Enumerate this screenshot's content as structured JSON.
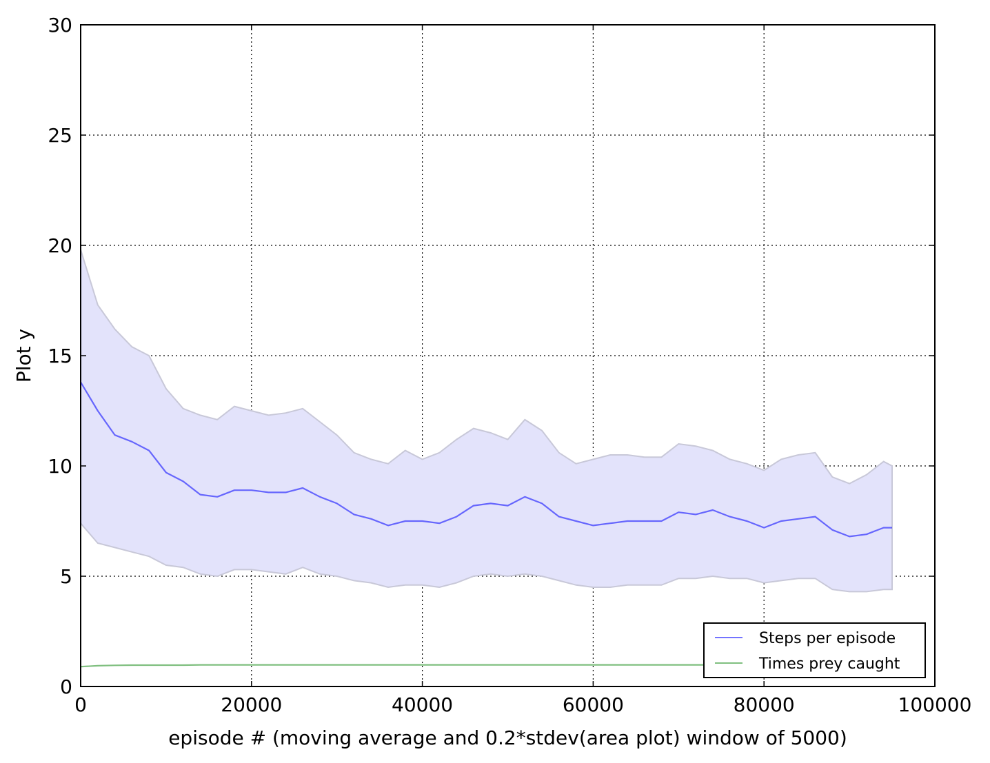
{
  "chart_data": {
    "type": "line",
    "title": "",
    "xlabel": "episode # (moving average and 0.2*stdev(area plot) window of 5000)",
    "ylabel": "Plot y",
    "xlim": [
      0,
      100000
    ],
    "ylim": [
      0,
      30
    ],
    "x_ticks": [
      0,
      20000,
      40000,
      60000,
      80000,
      100000
    ],
    "x_tick_labels": [
      "0",
      "20000",
      "40000",
      "60000",
      "80000",
      "100000"
    ],
    "y_ticks": [
      0,
      5,
      10,
      15,
      20,
      25,
      30
    ],
    "y_tick_labels": [
      "0",
      "5",
      "10",
      "15",
      "20",
      "25",
      "30"
    ],
    "grid": true,
    "legend_position": "bottom-right",
    "x": [
      0,
      2000,
      4000,
      6000,
      8000,
      10000,
      12000,
      14000,
      16000,
      18000,
      20000,
      22000,
      24000,
      26000,
      28000,
      30000,
      32000,
      34000,
      36000,
      38000,
      40000,
      42000,
      44000,
      46000,
      48000,
      50000,
      52000,
      54000,
      56000,
      58000,
      60000,
      62000,
      64000,
      66000,
      68000,
      70000,
      72000,
      74000,
      76000,
      78000,
      80000,
      82000,
      84000,
      86000,
      88000,
      90000,
      92000,
      94000,
      95000
    ],
    "series": [
      {
        "name": "Steps per episode",
        "color": "#0000ff",
        "opacity": 0.55,
        "values": [
          13.8,
          12.5,
          11.4,
          11.1,
          10.7,
          9.7,
          9.3,
          8.7,
          8.6,
          8.9,
          8.9,
          8.8,
          8.8,
          9.0,
          8.6,
          8.3,
          7.8,
          7.6,
          7.3,
          7.5,
          7.5,
          7.4,
          7.7,
          8.2,
          8.3,
          8.2,
          8.6,
          8.3,
          7.7,
          7.5,
          7.3,
          7.4,
          7.5,
          7.5,
          7.5,
          7.9,
          7.8,
          8.0,
          7.7,
          7.5,
          7.2,
          7.5,
          7.6,
          7.7,
          7.1,
          6.8,
          6.9,
          7.2,
          7.2
        ],
        "band_upper": [
          19.8,
          17.3,
          16.2,
          15.4,
          15.0,
          13.5,
          12.6,
          12.3,
          12.1,
          12.7,
          12.5,
          12.3,
          12.4,
          12.6,
          12.0,
          11.4,
          10.6,
          10.3,
          10.1,
          10.7,
          10.3,
          10.6,
          11.2,
          11.7,
          11.5,
          11.2,
          12.1,
          11.6,
          10.6,
          10.1,
          10.3,
          10.5,
          10.5,
          10.4,
          10.4,
          11.0,
          10.9,
          10.7,
          10.3,
          10.1,
          9.8,
          10.3,
          10.5,
          10.6,
          9.5,
          9.2,
          9.6,
          10.2,
          10.0
        ],
        "band_lower": [
          7.4,
          6.5,
          6.3,
          6.1,
          5.9,
          5.5,
          5.4,
          5.1,
          5.0,
          5.3,
          5.3,
          5.2,
          5.1,
          5.4,
          5.1,
          5.0,
          4.8,
          4.7,
          4.5,
          4.6,
          4.6,
          4.5,
          4.7,
          5.0,
          5.1,
          5.0,
          5.1,
          5.0,
          4.8,
          4.6,
          4.5,
          4.5,
          4.6,
          4.6,
          4.6,
          4.9,
          4.9,
          5.0,
          4.9,
          4.9,
          4.7,
          4.8,
          4.9,
          4.9,
          4.4,
          4.3,
          4.3,
          4.4,
          4.4
        ]
      },
      {
        "name": "Times prey caught",
        "color": "#008000",
        "opacity": 0.5,
        "values": [
          0.9,
          0.94,
          0.96,
          0.97,
          0.97,
          0.97,
          0.97,
          0.98,
          0.98,
          0.98,
          0.98,
          0.98,
          0.98,
          0.98,
          0.98,
          0.98,
          0.98,
          0.98,
          0.98,
          0.98,
          0.98,
          0.98,
          0.98,
          0.98,
          0.98,
          0.98,
          0.98,
          0.98,
          0.98,
          0.98,
          0.98,
          0.98,
          0.98,
          0.98,
          0.98,
          0.98,
          0.98,
          0.98,
          0.98,
          0.98,
          0.98,
          0.98,
          0.98,
          0.98,
          0.98,
          0.98,
          0.98,
          0.98,
          0.98
        ]
      }
    ]
  }
}
